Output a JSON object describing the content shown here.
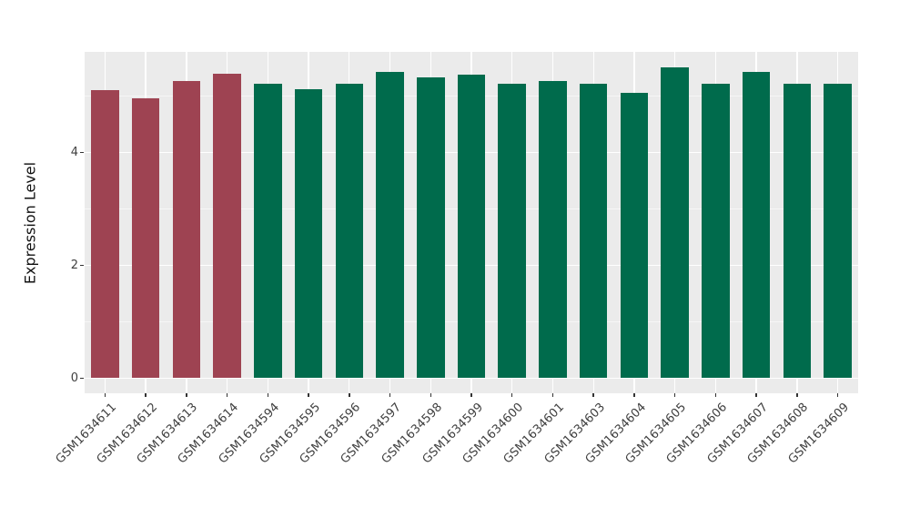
{
  "figure": {
    "background": "#FFFFFF",
    "panel_background": "#EBEBEB",
    "grid_major_color": "#FFFFFF",
    "axis_text_color": "#404040",
    "tick_color": "#333333"
  },
  "chart_data": {
    "type": "bar",
    "title": "",
    "xlabel": "",
    "ylabel": "Expression Level",
    "categories": [
      "GSM1634611",
      "GSM1634612",
      "GSM1634613",
      "GSM1634614",
      "GSM1634594",
      "GSM1634595",
      "GSM1634596",
      "GSM1634597",
      "GSM1634598",
      "GSM1634599",
      "GSM1634600",
      "GSM1634601",
      "GSM1634603",
      "GSM1634604",
      "GSM1634605",
      "GSM1634606",
      "GSM1634607",
      "GSM1634608",
      "GSM1634609"
    ],
    "values": [
      5.1,
      4.96,
      5.27,
      5.4,
      5.21,
      5.12,
      5.21,
      5.43,
      5.33,
      5.38,
      5.21,
      5.27,
      5.21,
      5.05,
      5.51,
      5.21,
      5.42,
      5.21,
      5.21
    ],
    "groups": [
      "red",
      "red",
      "red",
      "red",
      "green",
      "green",
      "green",
      "green",
      "green",
      "green",
      "green",
      "green",
      "green",
      "green",
      "green",
      "green",
      "green",
      "green",
      "green"
    ],
    "group_colors": {
      "red": "#9E4352",
      "green": "#006B4C"
    },
    "ylim": [
      0,
      5.78
    ],
    "yticks": [
      0,
      2,
      4
    ],
    "yticks_minor": [
      1,
      3,
      5
    ],
    "grid": true,
    "legend": "none"
  }
}
